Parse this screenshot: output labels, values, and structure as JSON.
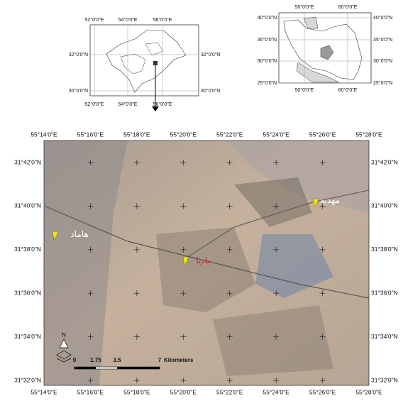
{
  "inset_province": {
    "lon_labels": [
      "52°0'0\"E",
      "54°0'0\"E",
      "56°0'0\"E"
    ],
    "lat_labels": [
      "32°0'0\"N",
      "30°0'0\"N"
    ]
  },
  "inset_country": {
    "lon_labels": [
      "50°0'0\"E",
      "60°0'0\"E"
    ],
    "lat_labels": [
      "40°0'0\"N",
      "35°0'0\"N",
      "30°0'0\"N",
      "25°0'0\"N"
    ]
  },
  "main_map": {
    "lon_labels": [
      "55°14'0\"E",
      "55°16'0\"E",
      "55°18'0\"E",
      "55°20'0\"E",
      "55°22'0\"E",
      "55°24'0\"E",
      "55°26'0\"E",
      "55°28'0\"E"
    ],
    "lat_labels": [
      "31°42'0\"N",
      "31°40'0\"N",
      "31°38'0\"N",
      "31°36'0\"N",
      "31°34'0\"N",
      "31°32'0\"N"
    ],
    "places": [
      "هاماد",
      "بادیا",
      "مهدیه"
    ],
    "north": "N",
    "scale_bar": {
      "ticks": [
        "0",
        "1.75",
        "3.5",
        "7"
      ],
      "unit": "Kilometers"
    }
  }
}
